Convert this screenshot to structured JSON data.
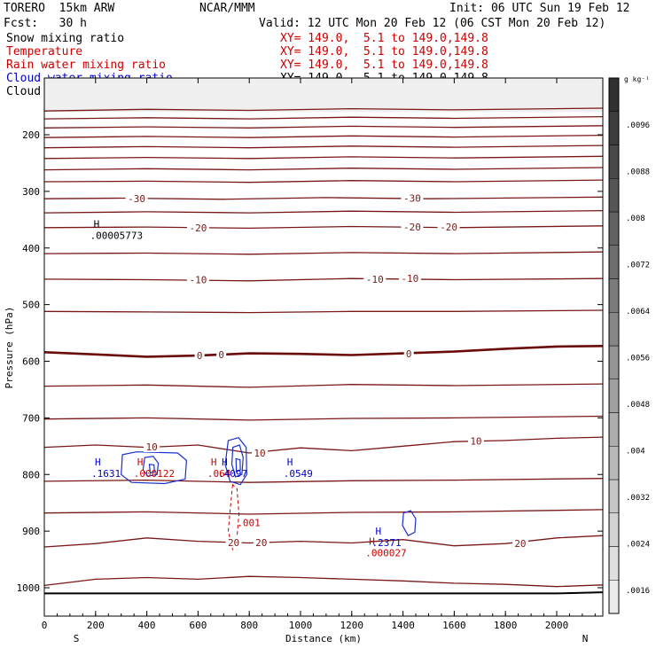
{
  "header": {
    "model": "TORERO  15km ARW",
    "org": "NCAR/MMM",
    "init": "Init: 06 UTC Sun 19 Feb 12",
    "fcst": "Fcst:   30 h",
    "valid": "Valid: 12 UTC Mon 20 Feb 12 (06 CST Mon 20 Feb 12)"
  },
  "legend": [
    {
      "name": "Snow mixing ratio",
      "xy": "",
      "color": "#000000"
    },
    {
      "name": "Temperature",
      "xy": "XY= 149.0,  5.1 to 149.0,149.8",
      "color": "#cc0000"
    },
    {
      "name": "Rain water mixing ratio",
      "xy": "XY= 149.0,  5.1 to 149.0,149.8",
      "color": "#cc0000"
    },
    {
      "name": "Cloud water mixing ratio",
      "xy": "XY= 149.0,  5.1 to 149.0,149.8",
      "color": "#0000cc"
    },
    {
      "name": "Cloud ice mixing ratio",
      "xy": "XY= 149.0,  5.1 to 149.0,149.8",
      "color": "#000000"
    }
  ],
  "chart_data": {
    "type": "line",
    "title": "Vertical cross section",
    "xlabel": "Distance (km)",
    "ylabel": "Pressure (hPa)",
    "xlim": [
      0,
      2180
    ],
    "ylim": [
      1050,
      150
    ],
    "x_ticks": [
      "0",
      "200",
      "400",
      "600",
      "800",
      "1000",
      "1200",
      "1400",
      "1600",
      "1800",
      "2000"
    ],
    "y_ticks": [
      "200",
      "300",
      "400",
      "500",
      "600",
      "700",
      "800",
      "900",
      "1000"
    ],
    "x_end_labels": {
      "left": "S",
      "right": "N"
    },
    "colorbar": {
      "unit": "g kg⁻¹",
      "levels": [
        ".0016",
        ".0024",
        ".0032",
        ".004",
        ".0048",
        ".0056",
        ".0064",
        ".0072",
        ".008",
        ".0088",
        ".0096"
      ]
    },
    "temperature_isotherms": [
      {
        "label": "",
        "points": [
          [
            0,
            158
          ],
          [
            400,
            155
          ],
          [
            800,
            157
          ],
          [
            1200,
            154
          ],
          [
            1600,
            156
          ],
          [
            2180,
            153
          ]
        ]
      },
      {
        "label": "",
        "points": [
          [
            0,
            172
          ],
          [
            400,
            170
          ],
          [
            800,
            172
          ],
          [
            1200,
            169
          ],
          [
            1600,
            171
          ],
          [
            2180,
            168
          ]
        ]
      },
      {
        "label": "",
        "points": [
          [
            0,
            188
          ],
          [
            400,
            186
          ],
          [
            800,
            188
          ],
          [
            1200,
            185
          ],
          [
            1600,
            187
          ],
          [
            2180,
            184
          ]
        ]
      },
      {
        "label": "",
        "points": [
          [
            0,
            205
          ],
          [
            400,
            203
          ],
          [
            800,
            205
          ],
          [
            1200,
            202
          ],
          [
            1600,
            204
          ],
          [
            2180,
            201
          ]
        ]
      },
      {
        "label": "",
        "points": [
          [
            0,
            223
          ],
          [
            400,
            221
          ],
          [
            800,
            223
          ],
          [
            1200,
            220
          ],
          [
            1600,
            222
          ],
          [
            2180,
            219
          ]
        ]
      },
      {
        "label": "",
        "points": [
          [
            0,
            242
          ],
          [
            400,
            240
          ],
          [
            800,
            242
          ],
          [
            1200,
            239
          ],
          [
            1600,
            241
          ],
          [
            2180,
            238
          ]
        ]
      },
      {
        "label": "",
        "points": [
          [
            0,
            262
          ],
          [
            400,
            260
          ],
          [
            800,
            262
          ],
          [
            1200,
            259
          ],
          [
            1600,
            261
          ],
          [
            2180,
            258
          ]
        ]
      },
      {
        "label": "",
        "points": [
          [
            0,
            283
          ],
          [
            400,
            282
          ],
          [
            800,
            284
          ],
          [
            1200,
            281
          ],
          [
            1600,
            283
          ],
          [
            2180,
            280
          ]
        ]
      },
      {
        "label": "-30",
        "points": [
          [
            0,
            313
          ],
          [
            300,
            312
          ],
          [
            700,
            314
          ],
          [
            1100,
            311
          ],
          [
            1500,
            313
          ],
          [
            2180,
            310
          ]
        ]
      },
      {
        "label": "",
        "points": [
          [
            0,
            338
          ],
          [
            400,
            336
          ],
          [
            800,
            338
          ],
          [
            1200,
            335
          ],
          [
            1600,
            337
          ],
          [
            2180,
            334
          ]
        ]
      },
      {
        "label": "-20",
        "points": [
          [
            0,
            364
          ],
          [
            400,
            363
          ],
          [
            800,
            365
          ],
          [
            1200,
            362
          ],
          [
            1600,
            364
          ],
          [
            2180,
            361
          ]
        ]
      },
      {
        "label": "",
        "points": [
          [
            0,
            410
          ],
          [
            400,
            409
          ],
          [
            800,
            411
          ],
          [
            1200,
            408
          ],
          [
            1600,
            410
          ],
          [
            2180,
            407
          ]
        ]
      },
      {
        "label": "-10",
        "points": [
          [
            0,
            455
          ],
          [
            400,
            456
          ],
          [
            800,
            458
          ],
          [
            1200,
            454
          ],
          [
            1600,
            456
          ],
          [
            2180,
            454
          ]
        ]
      },
      {
        "label": "",
        "points": [
          [
            0,
            512
          ],
          [
            400,
            513
          ],
          [
            800,
            514
          ],
          [
            1200,
            512
          ],
          [
            1600,
            512
          ],
          [
            2180,
            510
          ]
        ]
      },
      {
        "label": "0",
        "points": [
          [
            0,
            584
          ],
          [
            200,
            588
          ],
          [
            400,
            592
          ],
          [
            600,
            590
          ],
          [
            800,
            586
          ],
          [
            1000,
            587
          ],
          [
            1200,
            589
          ],
          [
            1400,
            586
          ],
          [
            1600,
            583
          ],
          [
            1800,
            578
          ],
          [
            2000,
            574
          ],
          [
            2180,
            573
          ]
        ]
      },
      {
        "label": "",
        "points": [
          [
            0,
            644
          ],
          [
            400,
            642
          ],
          [
            800,
            646
          ],
          [
            1200,
            641
          ],
          [
            1600,
            643
          ],
          [
            2180,
            640
          ]
        ]
      },
      {
        "label": "",
        "points": [
          [
            0,
            702
          ],
          [
            400,
            700
          ],
          [
            800,
            704
          ],
          [
            1200,
            701
          ],
          [
            1600,
            700
          ],
          [
            2180,
            697
          ]
        ]
      },
      {
        "label": "10",
        "points": [
          [
            0,
            752
          ],
          [
            200,
            748
          ],
          [
            400,
            752
          ],
          [
            600,
            748
          ],
          [
            800,
            762
          ],
          [
            1000,
            753
          ],
          [
            1200,
            758
          ],
          [
            1400,
            750
          ],
          [
            1600,
            742
          ],
          [
            1800,
            740
          ],
          [
            2000,
            736
          ],
          [
            2180,
            734
          ]
        ]
      },
      {
        "label": "",
        "points": [
          [
            0,
            812
          ],
          [
            400,
            810
          ],
          [
            800,
            814
          ],
          [
            1200,
            811
          ],
          [
            1600,
            810
          ],
          [
            2180,
            807
          ]
        ]
      },
      {
        "label": "",
        "points": [
          [
            0,
            868
          ],
          [
            400,
            866
          ],
          [
            800,
            870
          ],
          [
            1200,
            867
          ],
          [
            1600,
            866
          ],
          [
            2180,
            862
          ]
        ]
      },
      {
        "label": "20",
        "points": [
          [
            0,
            928
          ],
          [
            200,
            922
          ],
          [
            400,
            912
          ],
          [
            600,
            918
          ],
          [
            800,
            921
          ],
          [
            1000,
            918
          ],
          [
            1200,
            921
          ],
          [
            1400,
            915
          ],
          [
            1600,
            926
          ],
          [
            1800,
            922
          ],
          [
            2000,
            912
          ],
          [
            2180,
            908
          ]
        ]
      },
      {
        "label": "",
        "points": [
          [
            0,
            996
          ],
          [
            200,
            985
          ],
          [
            400,
            982
          ],
          [
            600,
            985
          ],
          [
            800,
            980
          ],
          [
            1000,
            982
          ],
          [
            1200,
            985
          ],
          [
            1400,
            988
          ],
          [
            1600,
            992
          ],
          [
            1800,
            994
          ],
          [
            2000,
            998
          ],
          [
            2180,
            995
          ]
        ]
      }
    ],
    "isotherm_labels": [
      {
        "text": "-30",
        "x": 360,
        "p": 313
      },
      {
        "text": "-30",
        "x": 1436,
        "p": 312
      },
      {
        "text": "-20",
        "x": 1436,
        "p": 363
      },
      {
        "text": "-20",
        "x": 1578,
        "p": 363
      },
      {
        "text": "-20",
        "x": 600,
        "p": 364
      },
      {
        "text": "-10",
        "x": 600,
        "p": 456
      },
      {
        "text": "-10",
        "x": 1290,
        "p": 455
      },
      {
        "text": "-10",
        "x": 1427,
        "p": 454
      },
      {
        "text": "0",
        "x": 606,
        "p": 590
      },
      {
        "text": "0",
        "x": 691,
        "p": 588
      },
      {
        "text": "0",
        "x": 1423,
        "p": 587
      },
      {
        "text": "10",
        "x": 419,
        "p": 751
      },
      {
        "text": "10",
        "x": 841,
        "p": 762
      },
      {
        "text": "10",
        "x": 1685,
        "p": 741
      },
      {
        "text": "20",
        "x": 739,
        "p": 920
      },
      {
        "text": "20",
        "x": 847,
        "p": 920
      },
      {
        "text": "20",
        "x": 1858,
        "p": 922
      }
    ],
    "surface": [
      [
        0,
        1010
      ],
      [
        500,
        1010
      ],
      [
        1000,
        1010
      ],
      [
        1500,
        1010
      ],
      [
        2000,
        1010
      ],
      [
        2180,
        1008
      ]
    ],
    "cloud_water": [
      {
        "points": [
          [
            305,
            765
          ],
          [
            360,
            760
          ],
          [
            520,
            762
          ],
          [
            555,
            775
          ],
          [
            550,
            808
          ],
          [
            470,
            816
          ],
          [
            340,
            814
          ],
          [
            300,
            800
          ],
          [
            305,
            765
          ]
        ]
      },
      {
        "points": [
          [
            392,
            770
          ],
          [
            425,
            768
          ],
          [
            445,
            780
          ],
          [
            440,
            800
          ],
          [
            405,
            803
          ],
          [
            385,
            792
          ],
          [
            392,
            770
          ]
        ]
      },
      {
        "points": [
          [
            410,
            782
          ],
          [
            428,
            783
          ],
          [
            430,
            795
          ],
          [
            413,
            797
          ],
          [
            410,
            782
          ]
        ]
      },
      {
        "points": [
          [
            718,
            740
          ],
          [
            758,
            735
          ],
          [
            788,
            752
          ],
          [
            790,
            800
          ],
          [
            765,
            818
          ],
          [
            725,
            812
          ],
          [
            706,
            782
          ],
          [
            718,
            740
          ]
        ]
      },
      {
        "points": [
          [
            736,
            752
          ],
          [
            762,
            748
          ],
          [
            776,
            770
          ],
          [
            771,
            800
          ],
          [
            746,
            804
          ],
          [
            732,
            782
          ],
          [
            736,
            752
          ]
        ]
      },
      {
        "points": [
          [
            748,
            772
          ],
          [
            764,
            774
          ],
          [
            765,
            792
          ],
          [
            750,
            795
          ],
          [
            748,
            772
          ]
        ]
      },
      {
        "points": [
          [
            1402,
            868
          ],
          [
            1430,
            864
          ],
          [
            1450,
            878
          ],
          [
            1446,
            902
          ],
          [
            1420,
            908
          ],
          [
            1398,
            890
          ],
          [
            1402,
            868
          ]
        ]
      }
    ],
    "rain_water": [
      {
        "points": [
          [
            735,
            818
          ],
          [
            726,
            860
          ],
          [
            718,
            900
          ],
          [
            735,
            932
          ],
          [
            752,
            910
          ],
          [
            760,
            870
          ],
          [
            752,
            825
          ],
          [
            735,
            818
          ]
        ],
        "dashed": true
      }
    ],
    "rain_label": {
      "text": ".001",
      "x": 752,
      "p": 885
    },
    "maxima": [
      {
        "symbol": "H",
        "value": ".00005773",
        "x": 220,
        "p": 370,
        "color": "#000000"
      },
      {
        "symbol": "H",
        "value": ".1631",
        "x": 225,
        "p": 790,
        "color": "#0000cc"
      },
      {
        "symbol": "H",
        "value": ".000122",
        "x": 390,
        "p": 790,
        "color": "#cc0000"
      },
      {
        "symbol": "H",
        "value": ".064",
        "x": 678,
        "p": 790,
        "color": "#cc0000"
      },
      {
        "symbol": "H",
        "value": ".4097",
        "x": 720,
        "p": 790,
        "color": "#0000cc"
      },
      {
        "symbol": "H",
        "value": ".0549",
        "x": 975,
        "p": 790,
        "color": "#0000cc"
      },
      {
        "symbol": "H",
        "value": ".2371",
        "x": 1320,
        "p": 912,
        "color": "#0000cc"
      },
      {
        "symbol": "H",
        "value": ".000027",
        "x": 1295,
        "p": 930,
        "color": "#cc0000"
      }
    ]
  }
}
